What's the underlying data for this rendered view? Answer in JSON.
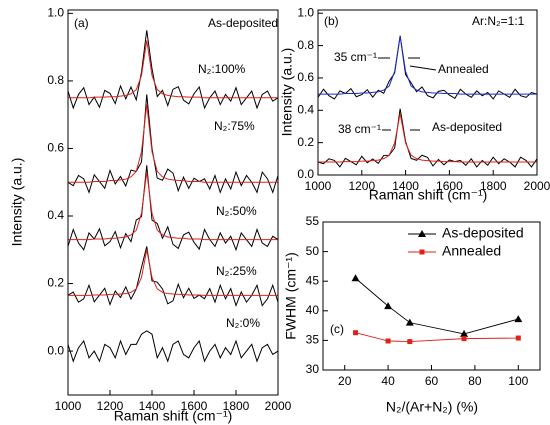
{
  "chart_data": [
    {
      "type": "line",
      "annotations": [
        "(a)",
        "As-deposited"
      ],
      "xlabel": "Raman shift (cm⁻¹)",
      "ylabel": "Intensity (a.u.)",
      "xlim": [
        1000,
        2000
      ],
      "ylim": [
        -0.13,
        1.01
      ],
      "xticks": [
        1000,
        1200,
        1400,
        1600,
        1800,
        2000
      ],
      "yticks": [
        {
          "value": 0,
          "label": "0.0"
        },
        0.2,
        0.4,
        0.6,
        0.8,
        {
          "value": 1,
          "label": "1.0"
        }
      ],
      "x": [
        1000,
        1025,
        1050,
        1075,
        1100,
        1125,
        1150,
        1175,
        1200,
        1225,
        1250,
        1275,
        1300,
        1325,
        1350,
        1375,
        1400,
        1425,
        1450,
        1475,
        1500,
        1525,
        1550,
        1575,
        1600,
        1625,
        1650,
        1675,
        1700,
        1725,
        1750,
        1775,
        1800,
        1825,
        1850,
        1875,
        1900,
        1925,
        1950,
        1975,
        2000
      ],
      "series": [
        {
          "name": "N₂:100%",
          "color": "#000000",
          "values": [
            0.77,
            0.72,
            0.76,
            0.78,
            0.73,
            0.752,
            0.722,
            0.772,
            0.763,
            0.733,
            0.785,
            0.747,
            0.782,
            0.744,
            0.826,
            0.95,
            0.836,
            0.754,
            0.772,
            0.727,
            0.775,
            0.783,
            0.743,
            0.732,
            0.762,
            0.782,
            0.72,
            0.75,
            0.77,
            0.73,
            0.76,
            0.74,
            0.78,
            0.73,
            0.75,
            0.77,
            0.72,
            0.76,
            0.77,
            0.74,
            0.75
          ]
        },
        {
          "color": "#e0201b",
          "values": [
            0.75,
            0.75,
            0.75,
            0.75,
            0.75,
            0.752,
            0.752,
            0.752,
            0.753,
            0.753,
            0.755,
            0.757,
            0.762,
            0.774,
            0.816,
            0.92,
            0.816,
            0.774,
            0.762,
            0.757,
            0.755,
            0.753,
            0.753,
            0.752,
            0.752,
            0.752,
            0.75,
            0.75,
            0.75,
            0.75,
            0.75,
            0.75,
            0.75,
            0.75,
            0.75,
            0.75,
            0.75,
            0.75,
            0.75,
            0.75,
            0.75
          ]
        },
        {
          "name": "N₂:75%",
          "color": "#000000",
          "values": [
            0.5,
            0.49,
            0.52,
            0.51,
            0.47,
            0.522,
            0.502,
            0.482,
            0.535,
            0.495,
            0.517,
            0.489,
            0.536,
            0.532,
            0.56,
            0.76,
            0.6,
            0.512,
            0.506,
            0.539,
            0.527,
            0.475,
            0.515,
            0.482,
            0.512,
            0.502,
            0.51,
            0.48,
            0.52,
            0.47,
            0.51,
            0.48,
            0.53,
            0.49,
            0.52,
            0.5,
            0.47,
            0.53,
            0.51,
            0.47,
            0.52
          ]
        },
        {
          "color": "#e0201b",
          "values": [
            0.5,
            0.5,
            0.5,
            0.5,
            0.5,
            0.502,
            0.502,
            0.502,
            0.505,
            0.505,
            0.507,
            0.509,
            0.516,
            0.532,
            0.59,
            0.73,
            0.59,
            0.532,
            0.516,
            0.509,
            0.507,
            0.505,
            0.505,
            0.502,
            0.502,
            0.502,
            0.5,
            0.5,
            0.5,
            0.5,
            0.5,
            0.5,
            0.5,
            0.5,
            0.5,
            0.5,
            0.5,
            0.5,
            0.5,
            0.5,
            0.5
          ]
        },
        {
          "name": "N₂:50%",
          "color": "#000000",
          "values": [
            0.31,
            0.36,
            0.32,
            0.3,
            0.35,
            0.332,
            0.362,
            0.312,
            0.324,
            0.354,
            0.306,
            0.348,
            0.324,
            0.388,
            0.398,
            0.55,
            0.388,
            0.378,
            0.334,
            0.368,
            0.316,
            0.304,
            0.344,
            0.352,
            0.322,
            0.302,
            0.36,
            0.33,
            0.31,
            0.35,
            0.32,
            0.34,
            0.3,
            0.35,
            0.33,
            0.31,
            0.36,
            0.32,
            0.31,
            0.34,
            0.33
          ]
        },
        {
          "color": "#e0201b",
          "values": [
            0.33,
            0.33,
            0.33,
            0.33,
            0.33,
            0.332,
            0.332,
            0.332,
            0.334,
            0.334,
            0.336,
            0.338,
            0.344,
            0.358,
            0.408,
            0.53,
            0.408,
            0.358,
            0.344,
            0.338,
            0.336,
            0.334,
            0.334,
            0.332,
            0.332,
            0.332,
            0.33,
            0.33,
            0.33,
            0.33,
            0.33,
            0.33,
            0.33,
            0.33,
            0.33,
            0.33,
            0.33,
            0.33,
            0.33,
            0.33,
            0.33
          ]
        },
        {
          "name": "N₂:25%",
          "color": "#000000",
          "values": [
            0.165,
            0.175,
            0.145,
            0.155,
            0.195,
            0.146,
            0.166,
            0.186,
            0.138,
            0.178,
            0.159,
            0.19,
            0.154,
            0.184,
            0.248,
            0.31,
            0.208,
            0.204,
            0.184,
            0.14,
            0.149,
            0.198,
            0.158,
            0.186,
            0.156,
            0.166,
            0.155,
            0.185,
            0.145,
            0.195,
            0.155,
            0.185,
            0.135,
            0.175,
            0.145,
            0.165,
            0.195,
            0.135,
            0.155,
            0.195,
            0.145
          ]
        },
        {
          "color": "#e0201b",
          "values": [
            0.165,
            0.165,
            0.165,
            0.165,
            0.165,
            0.166,
            0.166,
            0.166,
            0.168,
            0.168,
            0.169,
            0.17,
            0.174,
            0.184,
            0.218,
            0.3,
            0.218,
            0.184,
            0.174,
            0.17,
            0.169,
            0.168,
            0.168,
            0.166,
            0.166,
            0.166,
            0.165,
            0.165,
            0.165,
            0.165,
            0.165,
            0.165,
            0.165,
            0.165,
            0.165,
            0.165,
            0.165,
            0.165,
            0.165,
            0.165,
            0.165
          ]
        },
        {
          "name": "N₂:0%",
          "color": "#000000",
          "values": [
            0.02,
            -0.03,
            0.01,
            0.03,
            -0.02,
            0,
            -0.03,
            0.02,
            0.01,
            -0.02,
            0.03,
            -0.01,
            0.02,
            0.02,
            0.05,
            0.06,
            0.05,
            -0.02,
            0.01,
            -0.03,
            0.02,
            0.03,
            -0.01,
            -0.02,
            0.01,
            0.03,
            -0.03,
            0,
            0.02,
            -0.02,
            0.01,
            -0.01,
            0.03,
            -0.02,
            0,
            0.02,
            -0.03,
            0.01,
            0.02,
            -0.01,
            0
          ]
        }
      ]
    },
    {
      "type": "line",
      "annotations": [
        "(b)",
        "Ar:N₂=1:1",
        "35 cm⁻¹",
        "38 cm⁻¹"
      ],
      "xlabel": "Raman shift (cm⁻¹)",
      "ylabel": "Intensity (a.u.)",
      "xlim": [
        1000,
        2000
      ],
      "ylim": [
        0,
        1.02
      ],
      "xticks": [
        1000,
        1200,
        1400,
        1600,
        1800,
        2000
      ],
      "yticks": [
        {
          "value": 0,
          "label": "0.0"
        },
        0.2,
        0.4,
        0.6,
        0.8,
        {
          "value": 1,
          "label": "1.0"
        }
      ],
      "x": [
        1000,
        1025,
        1050,
        1075,
        1100,
        1125,
        1150,
        1175,
        1200,
        1225,
        1250,
        1275,
        1300,
        1325,
        1350,
        1375,
        1400,
        1425,
        1450,
        1475,
        1500,
        1525,
        1550,
        1575,
        1600,
        1625,
        1650,
        1675,
        1700,
        1725,
        1750,
        1775,
        1800,
        1825,
        1850,
        1875,
        1900,
        1925,
        1950,
        1975,
        2000
      ],
      "series": [
        {
          "name": "Annealed",
          "color": "#000000",
          "values": [
            0.48,
            0.53,
            0.49,
            0.47,
            0.52,
            0.504,
            0.534,
            0.484,
            0.497,
            0.527,
            0.481,
            0.524,
            0.505,
            0.58,
            0.63,
            0.86,
            0.62,
            0.57,
            0.515,
            0.544,
            0.491,
            0.477,
            0.517,
            0.524,
            0.494,
            0.474,
            0.53,
            0.5,
            0.48,
            0.52,
            0.49,
            0.51,
            0.47,
            0.52,
            0.5,
            0.48,
            0.53,
            0.49,
            0.48,
            0.51,
            0.5
          ]
        },
        {
          "color": "#1a2ccf",
          "values": [
            0.5,
            0.5,
            0.5,
            0.5,
            0.5,
            0.504,
            0.504,
            0.504,
            0.507,
            0.507,
            0.511,
            0.514,
            0.525,
            0.55,
            0.64,
            0.86,
            0.64,
            0.55,
            0.525,
            0.514,
            0.511,
            0.507,
            0.507,
            0.504,
            0.504,
            0.504,
            0.5,
            0.5,
            0.5,
            0.5,
            0.5,
            0.5,
            0.5,
            0.5,
            0.5,
            0.5,
            0.5,
            0.5,
            0.5,
            0.5,
            0.5
          ]
        },
        {
          "name": "As-deposited",
          "color": "#000000",
          "values": [
            0.08,
            0.07,
            0.1,
            0.09,
            0.05,
            0.103,
            0.083,
            0.063,
            0.116,
            0.076,
            0.099,
            0.072,
            0.121,
            0.122,
            0.167,
            0.41,
            0.207,
            0.102,
            0.091,
            0.122,
            0.109,
            0.056,
            0.096,
            0.063,
            0.093,
            0.083,
            0.09,
            0.06,
            0.1,
            0.05,
            0.09,
            0.06,
            0.11,
            0.07,
            0.1,
            0.08,
            0.05,
            0.11,
            0.09,
            0.05,
            0.1
          ]
        },
        {
          "color": "#e0201b",
          "values": [
            0.08,
            0.08,
            0.08,
            0.08,
            0.08,
            0.083,
            0.083,
            0.083,
            0.086,
            0.086,
            0.089,
            0.092,
            0.101,
            0.122,
            0.197,
            0.38,
            0.197,
            0.122,
            0.101,
            0.092,
            0.089,
            0.086,
            0.086,
            0.083,
            0.083,
            0.083,
            0.08,
            0.08,
            0.08,
            0.08,
            0.08,
            0.08,
            0.08,
            0.08,
            0.08,
            0.08,
            0.08,
            0.08,
            0.08,
            0.08,
            0.08
          ]
        }
      ]
    },
    {
      "type": "line",
      "annotations": [
        "(c)"
      ],
      "xlabel": "N₂/(Ar+N₂) (%)",
      "ylabel": "FWHM (cm⁻¹)",
      "xlim": [
        10,
        110
      ],
      "ylim": [
        30,
        55
      ],
      "xticks": [
        20,
        40,
        60,
        80,
        100
      ],
      "yticks": [
        30,
        35,
        40,
        45,
        50,
        55
      ],
      "legend": "upper right",
      "x": [
        25,
        40,
        50,
        75,
        100
      ],
      "series": [
        {
          "name": "As-deposited",
          "color": "#000000",
          "marker": "triangle",
          "values": [
            45.5,
            40.8,
            38,
            36.1,
            38.6
          ]
        },
        {
          "name": "Annealed",
          "color": "#e0201b",
          "marker": "square",
          "values": [
            36.3,
            34.9,
            34.8,
            35.3,
            35.4
          ]
        }
      ]
    }
  ]
}
